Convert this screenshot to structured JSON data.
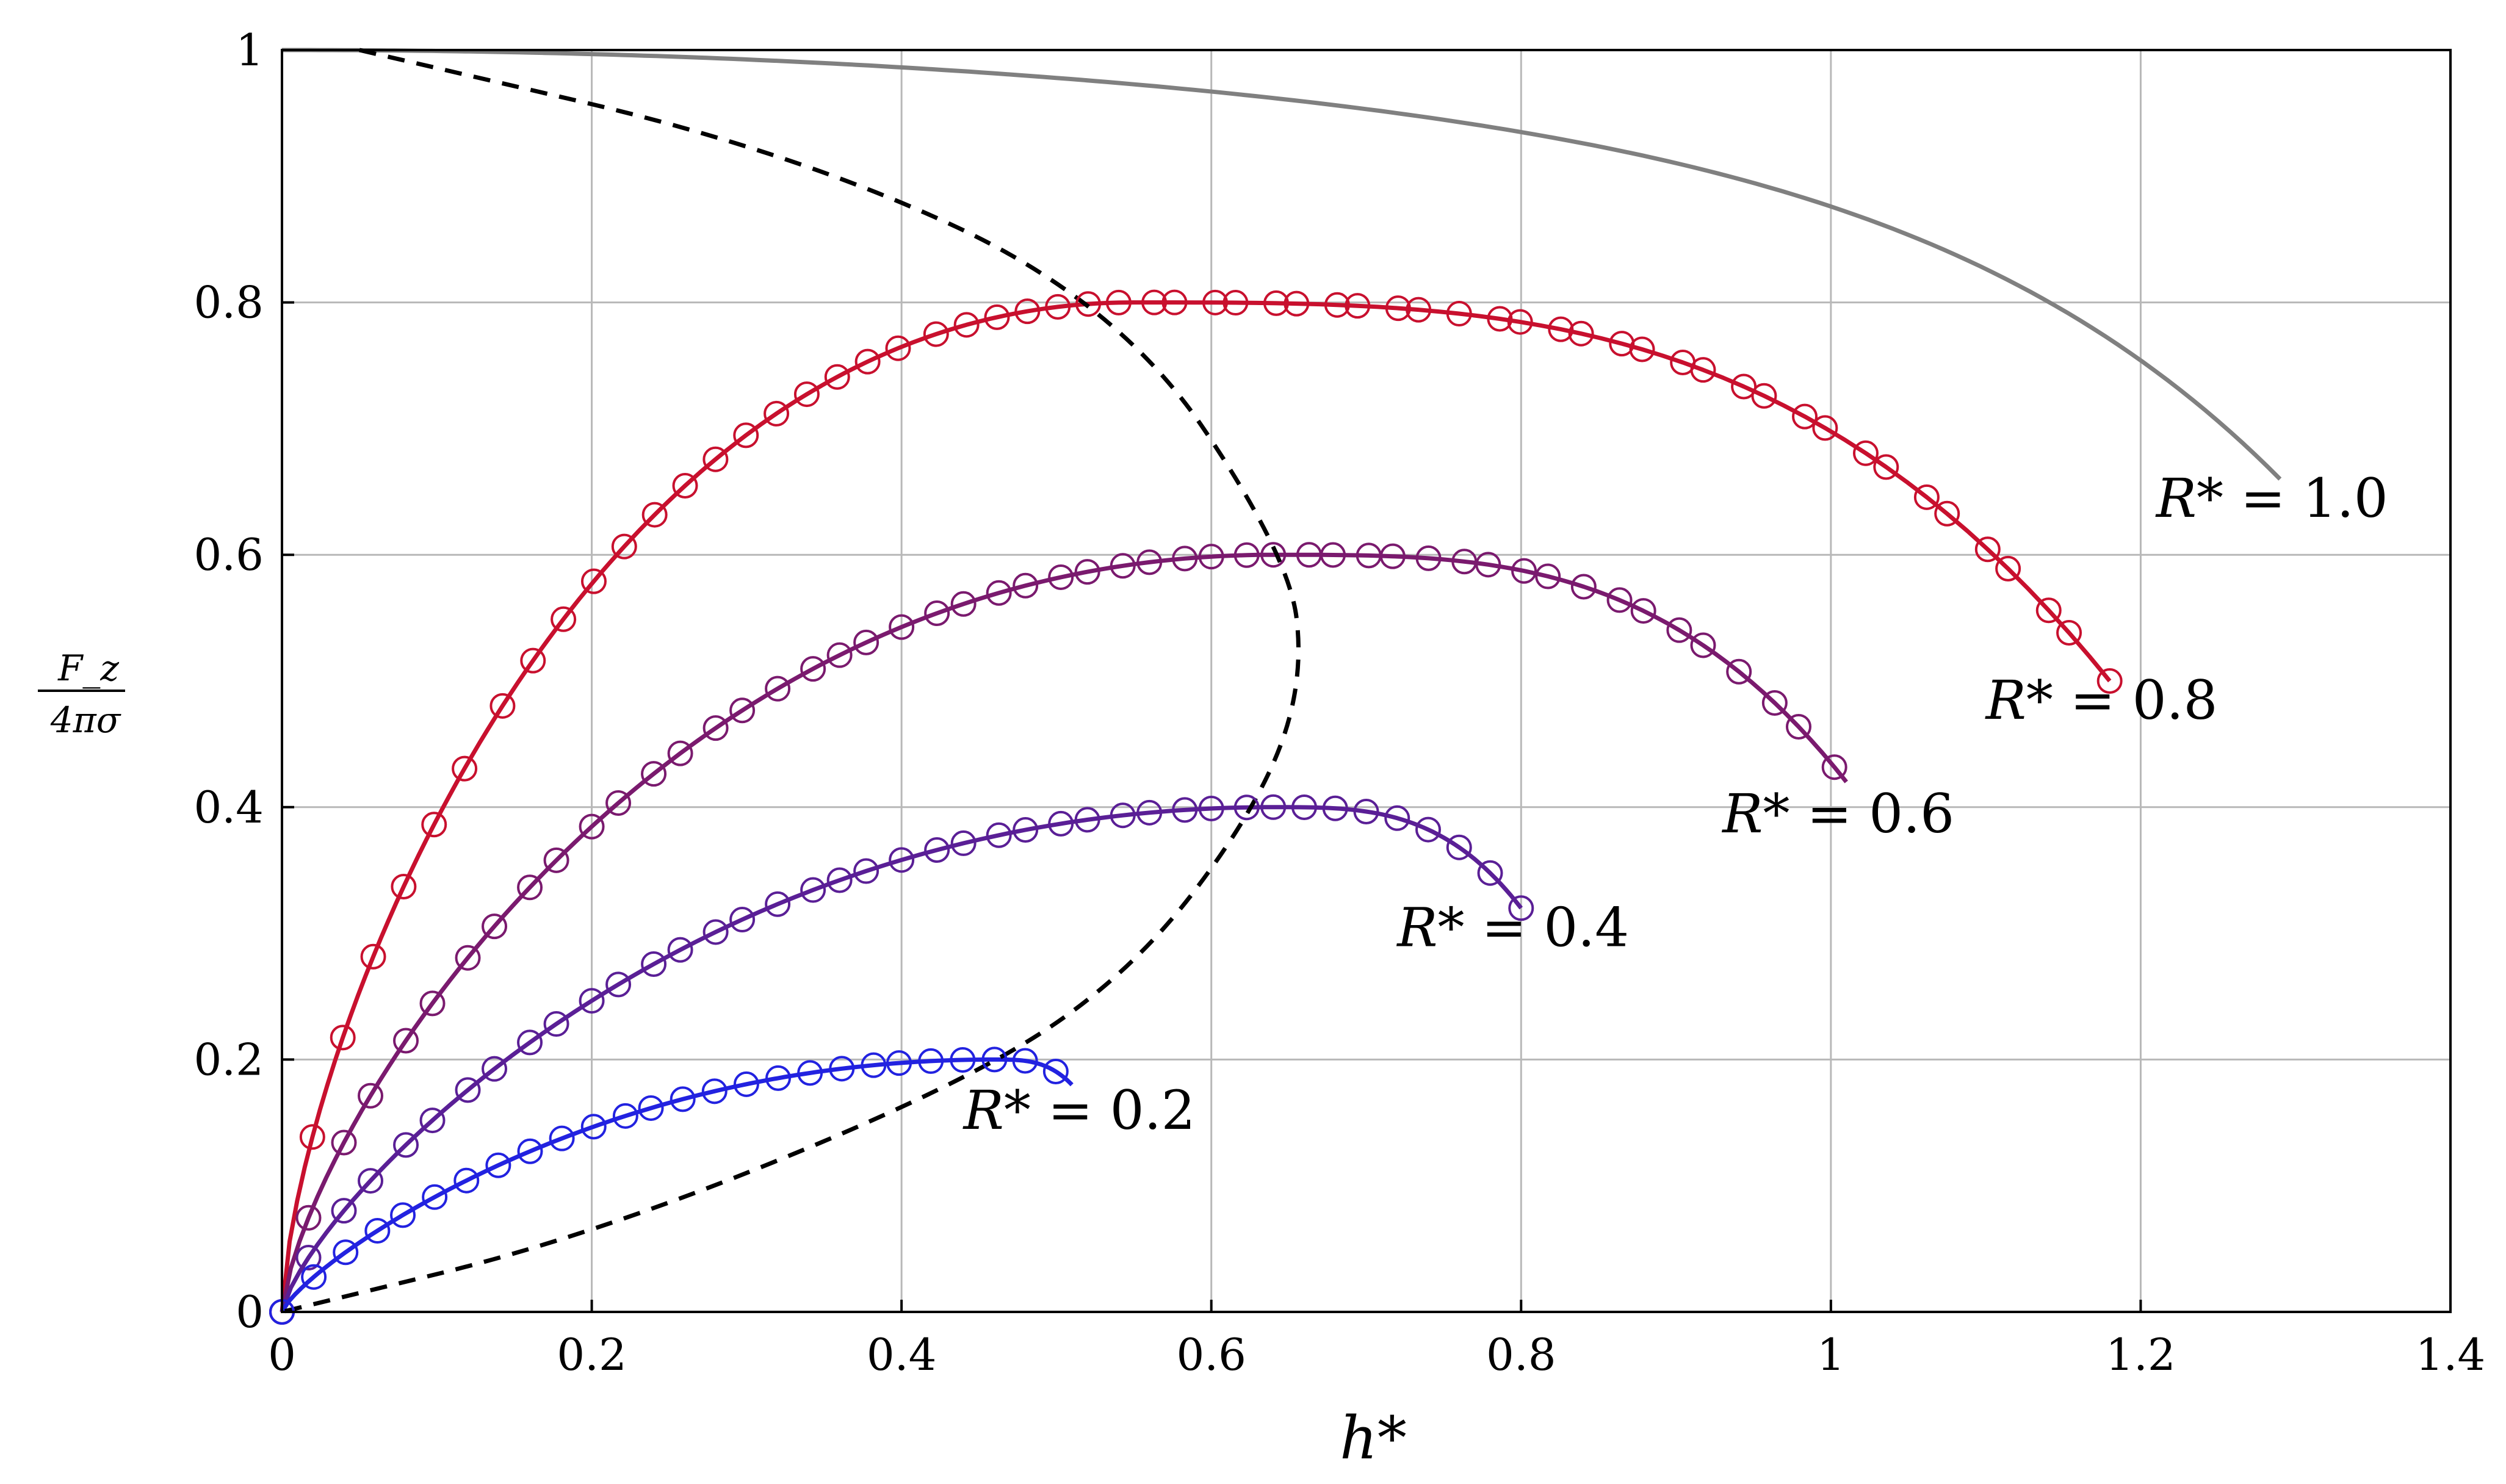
{
  "chart_data": {
    "type": "line",
    "xlabel": "h*",
    "ylabel_numerator": "F_z",
    "ylabel_denominator": "4πσ",
    "xlim": [
      0,
      1.4
    ],
    "ylim": [
      0,
      1
    ],
    "grid": true,
    "x_ticks": [
      "0",
      "0.2",
      "0.4",
      "0.6",
      "0.8",
      "1",
      "1.2",
      "1.4"
    ],
    "y_ticks": [
      "0",
      "0.2",
      "0.4",
      "0.6",
      "0.8",
      "1"
    ],
    "series": [
      {
        "label_var": "R*",
        "label_text": " = 1.0",
        "R": 1.0,
        "h_max": 1.29,
        "color": "#808080",
        "markers": false,
        "label_pos": [
          1.21,
          0.63
        ]
      },
      {
        "label_var": "R*",
        "label_text": " = 0.8",
        "R": 0.8,
        "h_max": 1.18,
        "color": "#c8102e",
        "markers": true,
        "label_pos": [
          1.1,
          0.47
        ]
      },
      {
        "label_var": "R*",
        "label_text": " = 0.6",
        "R": 0.6,
        "h_max": 1.01,
        "color": "#7a1a6e",
        "markers": true,
        "label_pos": [
          0.93,
          0.38
        ]
      },
      {
        "label_var": "R*",
        "label_text": " = 0.4",
        "R": 0.4,
        "h_max": 0.8,
        "color": "#5a1f96",
        "markers": true,
        "label_pos": [
          0.72,
          0.29
        ]
      },
      {
        "label_var": "R*",
        "label_text": " = 0.2",
        "R": 0.2,
        "h_max": 0.51,
        "color": "#2222e0",
        "markers": true,
        "label_pos": [
          0.44,
          0.145
        ]
      }
    ],
    "boundary": {
      "style": "dashed",
      "color": "#000000",
      "description_points": [
        [
          0.05,
          1.0
        ],
        [
          0.33,
          0.92
        ],
        [
          0.54,
          0.8
        ],
        [
          0.65,
          0.6
        ],
        [
          0.66,
          0.5
        ],
        [
          0.63,
          0.4
        ],
        [
          0.55,
          0.27
        ],
        [
          0.44,
          0.18
        ],
        [
          0.2,
          0.06
        ],
        [
          0.0,
          0.0
        ]
      ]
    }
  }
}
